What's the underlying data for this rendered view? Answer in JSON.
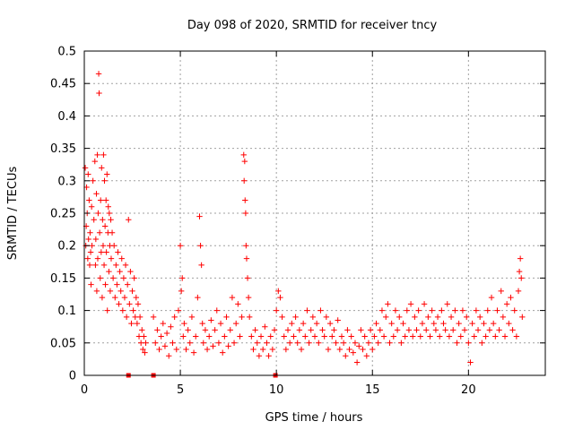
{
  "chart_data": {
    "type": "scatter",
    "title": "Day 098 of 2020, SRMTID for receiver tncy",
    "xlabel": "GPS time / hours",
    "ylabel": "SRMTID / TECUs",
    "xlim": [
      0,
      24
    ],
    "ylim": [
      0,
      0.5
    ],
    "x_ticks": [
      0,
      5,
      10,
      15,
      20
    ],
    "y_ticks": [
      0,
      0.05,
      0.1,
      0.15,
      0.2,
      0.25,
      0.3,
      0.35,
      0.4,
      0.45,
      0.5
    ],
    "x_tick_labels": [
      "0",
      "5",
      "10",
      "15",
      "20"
    ],
    "y_tick_labels": [
      "0",
      "0.05",
      "0.1",
      "0.15",
      "0.2",
      "0.25",
      "0.3",
      "0.35",
      "0.4",
      "0.45",
      "0.5"
    ],
    "grid": true,
    "marker": "+",
    "color": "#ff0000",
    "series": [
      {
        "name": "SRMTID",
        "points": [
          [
            0.05,
            0.32
          ],
          [
            0.08,
            0.2
          ],
          [
            0.1,
            0.23
          ],
          [
            0.12,
            0.29
          ],
          [
            0.15,
            0.25
          ],
          [
            0.18,
            0.18
          ],
          [
            0.2,
            0.31
          ],
          [
            0.22,
            0.21
          ],
          [
            0.25,
            0.27
          ],
          [
            0.28,
            0.17
          ],
          [
            0.3,
            0.22
          ],
          [
            0.33,
            0.19
          ],
          [
            0.35,
            0.14
          ],
          [
            0.38,
            0.26
          ],
          [
            0.4,
            0.2
          ],
          [
            0.45,
            0.3
          ],
          [
            0.5,
            0.24
          ],
          [
            0.55,
            0.33
          ],
          [
            0.58,
            0.17
          ],
          [
            0.6,
            0.21
          ],
          [
            0.63,
            0.28
          ],
          [
            0.65,
            0.13
          ],
          [
            0.68,
            0.34
          ],
          [
            0.7,
            0.18
          ],
          [
            0.72,
            0.25
          ],
          [
            0.75,
            0.465
          ],
          [
            0.77,
            0.435
          ],
          [
            0.8,
            0.22
          ],
          [
            0.83,
            0.15
          ],
          [
            0.85,
            0.27
          ],
          [
            0.88,
            0.19
          ],
          [
            0.9,
            0.32
          ],
          [
            0.93,
            0.12
          ],
          [
            0.95,
            0.24
          ],
          [
            0.98,
            0.2
          ],
          [
            1.0,
            0.34
          ],
          [
            1.03,
            0.17
          ],
          [
            1.05,
            0.3
          ],
          [
            1.08,
            0.23
          ],
          [
            1.1,
            0.14
          ],
          [
            1.13,
            0.27
          ],
          [
            1.15,
            0.19
          ],
          [
            1.18,
            0.31
          ],
          [
            1.2,
            0.1
          ],
          [
            1.23,
            0.22
          ],
          [
            1.25,
            0.26
          ],
          [
            1.28,
            0.16
          ],
          [
            1.3,
            0.25
          ],
          [
            1.33,
            0.2
          ],
          [
            1.35,
            0.13
          ],
          [
            1.38,
            0.24
          ],
          [
            1.4,
            0.18
          ],
          [
            1.45,
            0.22
          ],
          [
            1.5,
            0.15
          ],
          [
            1.55,
            0.2
          ],
          [
            1.6,
            0.12
          ],
          [
            1.65,
            0.17
          ],
          [
            1.7,
            0.14
          ],
          [
            1.75,
            0.19
          ],
          [
            1.8,
            0.11
          ],
          [
            1.85,
            0.16
          ],
          [
            1.9,
            0.13
          ],
          [
            1.95,
            0.18
          ],
          [
            2.0,
            0.1
          ],
          [
            2.05,
            0.15
          ],
          [
            2.1,
            0.12
          ],
          [
            2.15,
            0.17
          ],
          [
            2.2,
            0.09
          ],
          [
            2.25,
            0.14
          ],
          [
            2.3,
            0.24
          ],
          [
            2.35,
            0.11
          ],
          [
            2.4,
            0.16
          ],
          [
            2.45,
            0.08
          ],
          [
            2.5,
            0.13
          ],
          [
            2.55,
            0.1
          ],
          [
            2.6,
            0.15
          ],
          [
            2.65,
            0.09
          ],
          [
            2.7,
            0.12
          ],
          [
            2.75,
            0.08
          ],
          [
            2.8,
            0.11
          ],
          [
            2.85,
            0.06
          ],
          [
            2.9,
            0.09
          ],
          [
            2.95,
            0.05
          ],
          [
            3.0,
            0.07
          ],
          [
            3.05,
            0.04
          ],
          [
            3.1,
            0.06
          ],
          [
            3.15,
            0.035
          ],
          [
            3.2,
            0.05
          ],
          [
            3.6,
            0.09
          ],
          [
            3.7,
            0.05
          ],
          [
            3.8,
            0.07
          ],
          [
            3.9,
            0.04
          ],
          [
            4.0,
            0.06
          ],
          [
            4.1,
            0.08
          ],
          [
            4.2,
            0.045
          ],
          [
            4.3,
            0.065
          ],
          [
            4.4,
            0.03
          ],
          [
            4.5,
            0.075
          ],
          [
            4.6,
            0.05
          ],
          [
            4.7,
            0.09
          ],
          [
            4.8,
            0.04
          ],
          [
            4.9,
            0.1
          ],
          [
            5.0,
            0.2
          ],
          [
            5.05,
            0.13
          ],
          [
            5.1,
            0.15
          ],
          [
            5.15,
            0.06
          ],
          [
            5.2,
            0.08
          ],
          [
            5.3,
            0.04
          ],
          [
            5.4,
            0.07
          ],
          [
            5.5,
            0.05
          ],
          [
            5.6,
            0.09
          ],
          [
            5.7,
            0.035
          ],
          [
            5.8,
            0.06
          ],
          [
            5.9,
            0.12
          ],
          [
            6.0,
            0.245
          ],
          [
            6.05,
            0.2
          ],
          [
            6.1,
            0.17
          ],
          [
            6.15,
            0.08
          ],
          [
            6.2,
            0.05
          ],
          [
            6.3,
            0.07
          ],
          [
            6.4,
            0.04
          ],
          [
            6.5,
            0.06
          ],
          [
            6.6,
            0.085
          ],
          [
            6.7,
            0.045
          ],
          [
            6.8,
            0.07
          ],
          [
            6.9,
            0.1
          ],
          [
            7.0,
            0.05
          ],
          [
            7.1,
            0.08
          ],
          [
            7.2,
            0.035
          ],
          [
            7.3,
            0.06
          ],
          [
            7.4,
            0.09
          ],
          [
            7.5,
            0.045
          ],
          [
            7.6,
            0.07
          ],
          [
            7.7,
            0.12
          ],
          [
            7.8,
            0.05
          ],
          [
            7.9,
            0.08
          ],
          [
            8.0,
            0.11
          ],
          [
            8.1,
            0.06
          ],
          [
            8.2,
            0.09
          ],
          [
            8.3,
            0.34
          ],
          [
            8.32,
            0.3
          ],
          [
            8.35,
            0.33
          ],
          [
            8.37,
            0.27
          ],
          [
            8.4,
            0.25
          ],
          [
            8.42,
            0.2
          ],
          [
            8.45,
            0.18
          ],
          [
            8.5,
            0.15
          ],
          [
            8.55,
            0.12
          ],
          [
            8.6,
            0.09
          ],
          [
            8.7,
            0.06
          ],
          [
            8.8,
            0.04
          ],
          [
            8.9,
            0.07
          ],
          [
            9.0,
            0.05
          ],
          [
            9.1,
            0.03
          ],
          [
            9.2,
            0.06
          ],
          [
            9.3,
            0.04
          ],
          [
            9.4,
            0.075
          ],
          [
            9.5,
            0.05
          ],
          [
            9.6,
            0.03
          ],
          [
            9.7,
            0.06
          ],
          [
            9.8,
            0.04
          ],
          [
            9.9,
            0.07
          ],
          [
            10.0,
            0.1
          ],
          [
            10.1,
            0.13
          ],
          [
            10.2,
            0.12
          ],
          [
            10.3,
            0.09
          ],
          [
            10.4,
            0.06
          ],
          [
            10.5,
            0.04
          ],
          [
            10.6,
            0.07
          ],
          [
            10.7,
            0.05
          ],
          [
            10.8,
            0.08
          ],
          [
            10.9,
            0.06
          ],
          [
            11.0,
            0.09
          ],
          [
            11.1,
            0.05
          ],
          [
            11.2,
            0.07
          ],
          [
            11.3,
            0.04
          ],
          [
            11.4,
            0.08
          ],
          [
            11.5,
            0.06
          ],
          [
            11.6,
            0.1
          ],
          [
            11.7,
            0.05
          ],
          [
            11.8,
            0.07
          ],
          [
            11.9,
            0.09
          ],
          [
            12.0,
            0.06
          ],
          [
            12.1,
            0.08
          ],
          [
            12.2,
            0.05
          ],
          [
            12.3,
            0.1
          ],
          [
            12.4,
            0.07
          ],
          [
            12.5,
            0.06
          ],
          [
            12.6,
            0.09
          ],
          [
            12.7,
            0.04
          ],
          [
            12.8,
            0.08
          ],
          [
            12.9,
            0.06
          ],
          [
            13.0,
            0.07
          ],
          [
            13.1,
            0.05
          ],
          [
            13.2,
            0.085
          ],
          [
            13.3,
            0.04
          ],
          [
            13.4,
            0.06
          ],
          [
            13.5,
            0.05
          ],
          [
            13.6,
            0.03
          ],
          [
            13.7,
            0.07
          ],
          [
            13.8,
            0.04
          ],
          [
            13.9,
            0.06
          ],
          [
            14.0,
            0.035
          ],
          [
            14.1,
            0.05
          ],
          [
            14.2,
            0.02
          ],
          [
            14.3,
            0.045
          ],
          [
            14.4,
            0.07
          ],
          [
            14.5,
            0.04
          ],
          [
            14.6,
            0.06
          ],
          [
            14.7,
            0.03
          ],
          [
            14.8,
            0.05
          ],
          [
            14.9,
            0.07
          ],
          [
            15.0,
            0.04
          ],
          [
            15.1,
            0.06
          ],
          [
            15.2,
            0.08
          ],
          [
            15.3,
            0.05
          ],
          [
            15.4,
            0.07
          ],
          [
            15.5,
            0.1
          ],
          [
            15.6,
            0.06
          ],
          [
            15.7,
            0.09
          ],
          [
            15.8,
            0.11
          ],
          [
            15.9,
            0.05
          ],
          [
            16.0,
            0.08
          ],
          [
            16.1,
            0.06
          ],
          [
            16.2,
            0.1
          ],
          [
            16.3,
            0.07
          ],
          [
            16.4,
            0.09
          ],
          [
            16.5,
            0.05
          ],
          [
            16.6,
            0.08
          ],
          [
            16.7,
            0.06
          ],
          [
            16.8,
            0.1
          ],
          [
            16.9,
            0.07
          ],
          [
            17.0,
            0.11
          ],
          [
            17.1,
            0.06
          ],
          [
            17.2,
            0.09
          ],
          [
            17.3,
            0.07
          ],
          [
            17.4,
            0.1
          ],
          [
            17.5,
            0.06
          ],
          [
            17.6,
            0.08
          ],
          [
            17.7,
            0.11
          ],
          [
            17.8,
            0.07
          ],
          [
            17.9,
            0.09
          ],
          [
            18.0,
            0.06
          ],
          [
            18.1,
            0.1
          ],
          [
            18.2,
            0.08
          ],
          [
            18.3,
            0.07
          ],
          [
            18.4,
            0.09
          ],
          [
            18.5,
            0.06
          ],
          [
            18.6,
            0.1
          ],
          [
            18.7,
            0.08
          ],
          [
            18.8,
            0.07
          ],
          [
            18.9,
            0.11
          ],
          [
            19.0,
            0.06
          ],
          [
            19.1,
            0.09
          ],
          [
            19.2,
            0.07
          ],
          [
            19.3,
            0.1
          ],
          [
            19.4,
            0.05
          ],
          [
            19.5,
            0.08
          ],
          [
            19.6,
            0.06
          ],
          [
            19.7,
            0.1
          ],
          [
            19.8,
            0.07
          ],
          [
            19.9,
            0.09
          ],
          [
            20.0,
            0.05
          ],
          [
            20.1,
            0.02
          ],
          [
            20.2,
            0.08
          ],
          [
            20.3,
            0.06
          ],
          [
            20.4,
            0.1
          ],
          [
            20.5,
            0.07
          ],
          [
            20.6,
            0.09
          ],
          [
            20.7,
            0.05
          ],
          [
            20.8,
            0.08
          ],
          [
            20.9,
            0.06
          ],
          [
            21.0,
            0.1
          ],
          [
            21.1,
            0.07
          ],
          [
            21.2,
            0.12
          ],
          [
            21.3,
            0.08
          ],
          [
            21.4,
            0.06
          ],
          [
            21.5,
            0.1
          ],
          [
            21.6,
            0.07
          ],
          [
            21.7,
            0.13
          ],
          [
            21.8,
            0.09
          ],
          [
            21.9,
            0.06
          ],
          [
            22.0,
            0.11
          ],
          [
            22.1,
            0.08
          ],
          [
            22.2,
            0.12
          ],
          [
            22.3,
            0.07
          ],
          [
            22.4,
            0.1
          ],
          [
            22.5,
            0.06
          ],
          [
            22.6,
            0.13
          ],
          [
            22.65,
            0.16
          ],
          [
            22.7,
            0.18
          ],
          [
            22.75,
            0.15
          ],
          [
            22.8,
            0.09
          ]
        ]
      }
    ],
    "zero_points_x": [
      2.3,
      3.6,
      9.95
    ]
  }
}
